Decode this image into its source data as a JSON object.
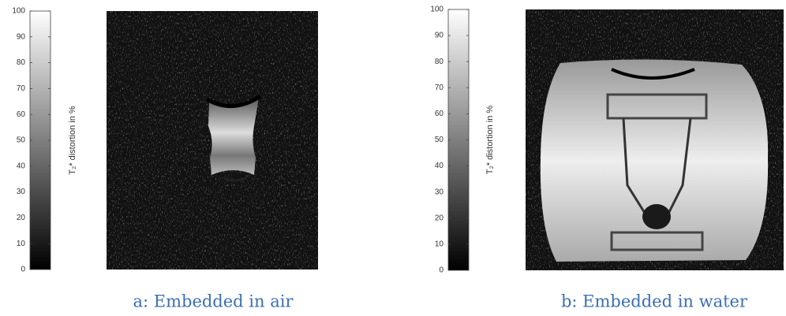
{
  "chart_data": [
    {
      "type": "heatmap",
      "ylabel": "T₂* distortion in %",
      "ylim": [
        0,
        100
      ],
      "yticks": [
        0,
        10,
        20,
        30,
        40,
        50,
        60,
        70,
        80,
        90,
        100
      ],
      "caption": "a: Embedded in air"
    },
    {
      "type": "heatmap",
      "ylabel": "T₂* distortion in %",
      "ylim": [
        0,
        100
      ],
      "yticks": [
        0,
        10,
        20,
        30,
        40,
        50,
        60,
        70,
        80,
        90,
        100
      ],
      "caption": "b: Embedded in water"
    }
  ]
}
